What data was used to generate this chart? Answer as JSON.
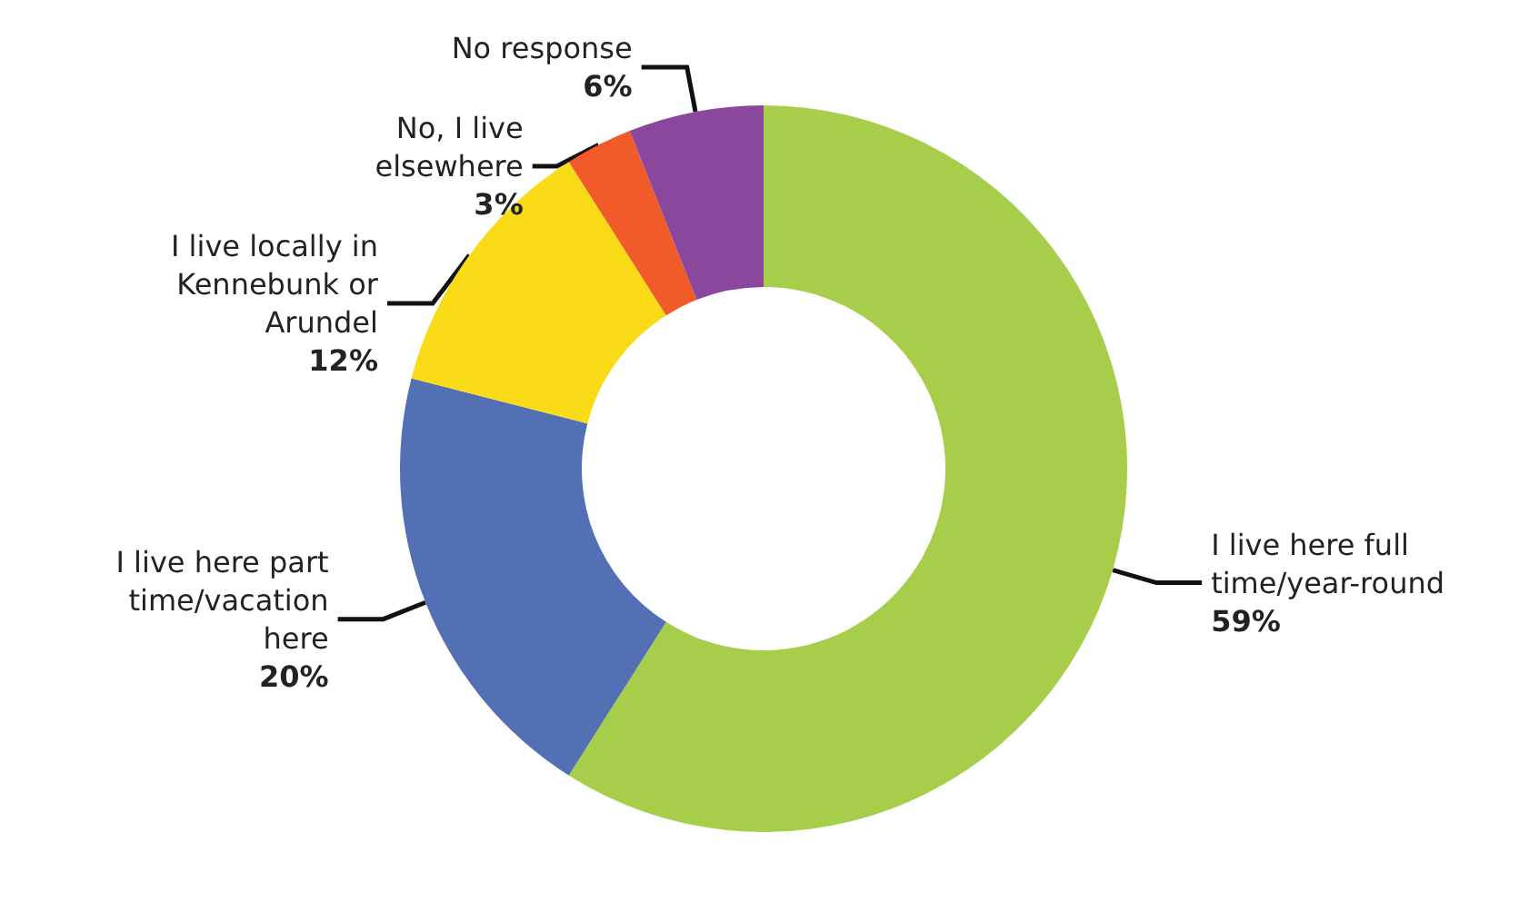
{
  "chart_data": {
    "type": "donut",
    "categories": [
      "I live here full time/year-round",
      "I live here part time/vacation here",
      "I live locally in Kennebunk or Arundel",
      "No, I live elsewhere",
      "No response"
    ],
    "values": [
      59,
      20,
      12,
      3,
      6
    ],
    "value_labels": [
      "59%",
      "20%",
      "12%",
      "3%",
      "6%"
    ],
    "colors": [
      "#a6ce4a",
      "#5470b5",
      "#f9dc17",
      "#f15a29",
      "#8b479b"
    ],
    "legend": false
  }
}
